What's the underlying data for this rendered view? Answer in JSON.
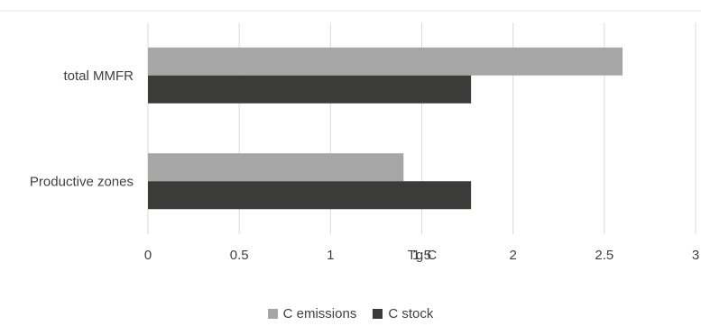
{
  "chart_data": {
    "type": "bar",
    "orientation": "horizontal",
    "categories": [
      "total MMFR",
      "Productive zones"
    ],
    "series": [
      {
        "name": "C emissions",
        "values": [
          2.6,
          1.4
        ],
        "color": "#a6a6a6"
      },
      {
        "name": "C stock",
        "values": [
          1.77,
          1.77
        ],
        "color": "#3b3b39"
      }
    ],
    "xlabel": "Tg C",
    "ylabel": "",
    "xlim": [
      0,
      3
    ],
    "xticks": [
      "0",
      "0.5",
      "1",
      "1.5",
      "2",
      "2.5",
      "3"
    ],
    "grid": true,
    "legend": "bottom"
  }
}
